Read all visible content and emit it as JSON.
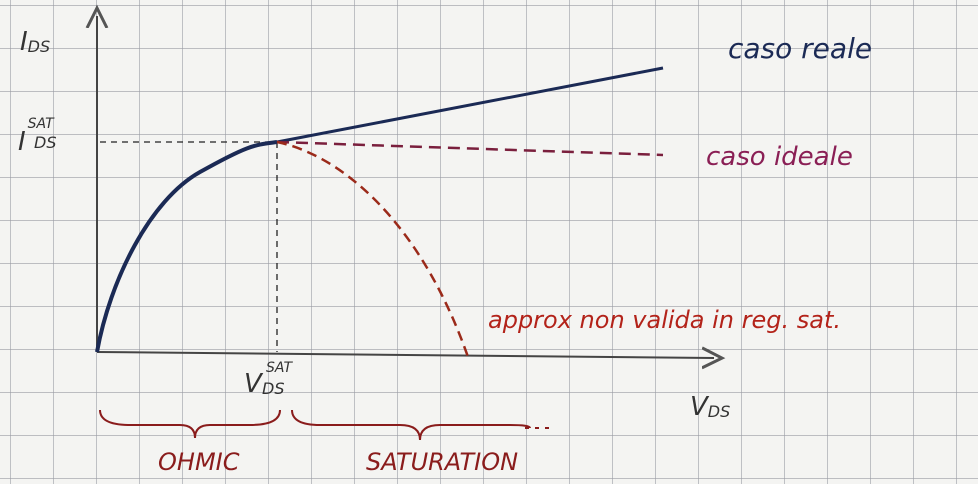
{
  "axes": {
    "y": {
      "symbol": "I",
      "subscript": "DS"
    },
    "x": {
      "symbol": "V",
      "subscript": "DS"
    }
  },
  "markers": {
    "ids_sat": {
      "symbol": "I",
      "subscript": "DS",
      "superscript": "SAT"
    },
    "vds_sat": {
      "symbol": "V",
      "subscript": "DS",
      "superscript": "SAT"
    }
  },
  "curves": {
    "real": "caso reale",
    "ideal": "caso ideale",
    "approx": "approx non valida in reg. sat."
  },
  "regions": {
    "ohmic": "OHMIC",
    "saturation": "SATURATION"
  }
}
